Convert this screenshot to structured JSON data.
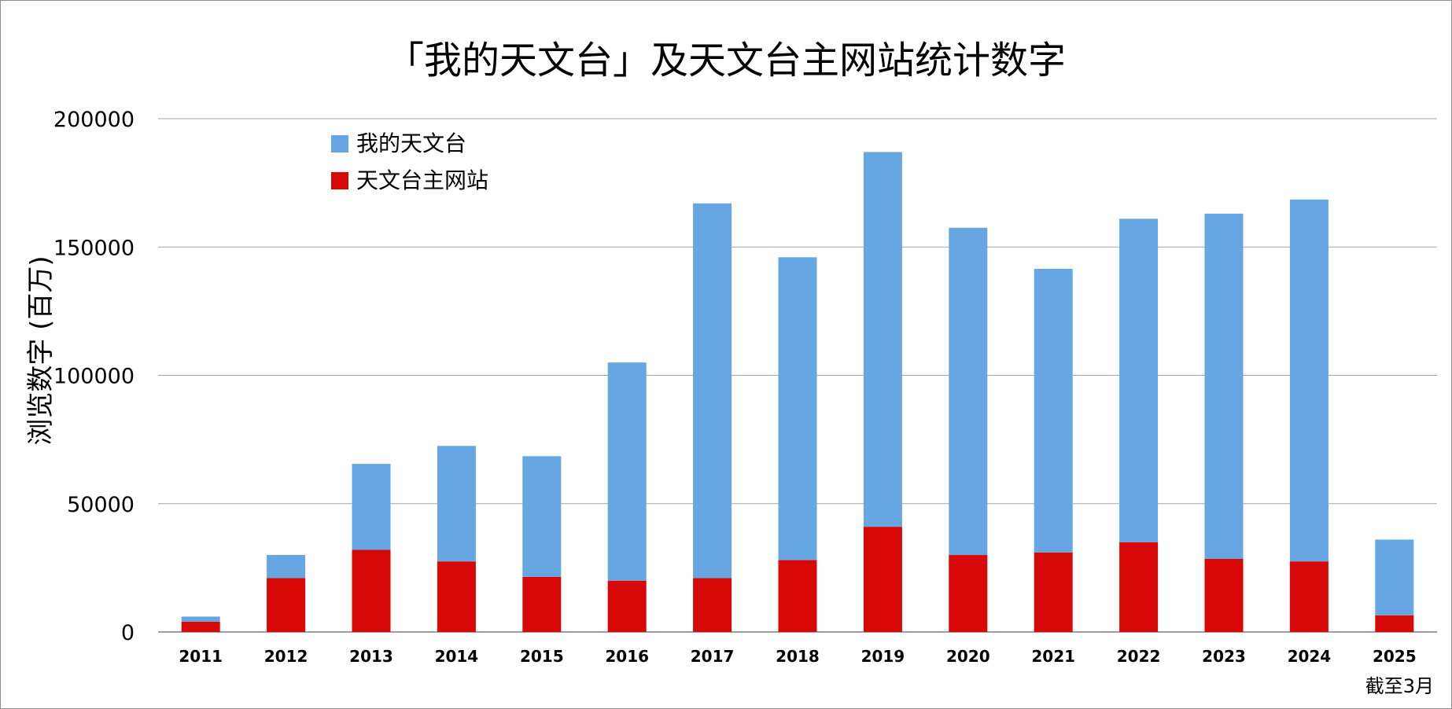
{
  "chart_data": {
    "type": "bar",
    "stacked": true,
    "title": "「我的天文台」及天文台主网站统计数字",
    "xlabel": "",
    "ylabel": "浏览数字 (百万)",
    "note": "截至3月",
    "categories": [
      "2011",
      "2012",
      "2013",
      "2014",
      "2015",
      "2016",
      "2017",
      "2018",
      "2019",
      "2020",
      "2021",
      "2022",
      "2023",
      "2024",
      "2025"
    ],
    "ylim": [
      0,
      200000
    ],
    "yticks": [
      "0",
      "50000",
      "100000",
      "150000",
      "200000"
    ],
    "grid": true,
    "legend_position": "top-left",
    "series": [
      {
        "name": "天文台主网站",
        "color": "#d90808",
        "values": [
          4000,
          21000,
          32000,
          27500,
          21500,
          20000,
          21000,
          28000,
          41000,
          30000,
          31000,
          35000,
          28500,
          27500,
          6500
        ]
      },
      {
        "name": "我的天文台",
        "color": "#66a6e2",
        "values": [
          2000,
          9000,
          33500,
          45000,
          47000,
          85000,
          146000,
          118000,
          146000,
          127500,
          110500,
          126000,
          134500,
          141000,
          29500
        ]
      }
    ],
    "legend_order": [
      "我的天文台",
      "天文台主网站"
    ]
  }
}
